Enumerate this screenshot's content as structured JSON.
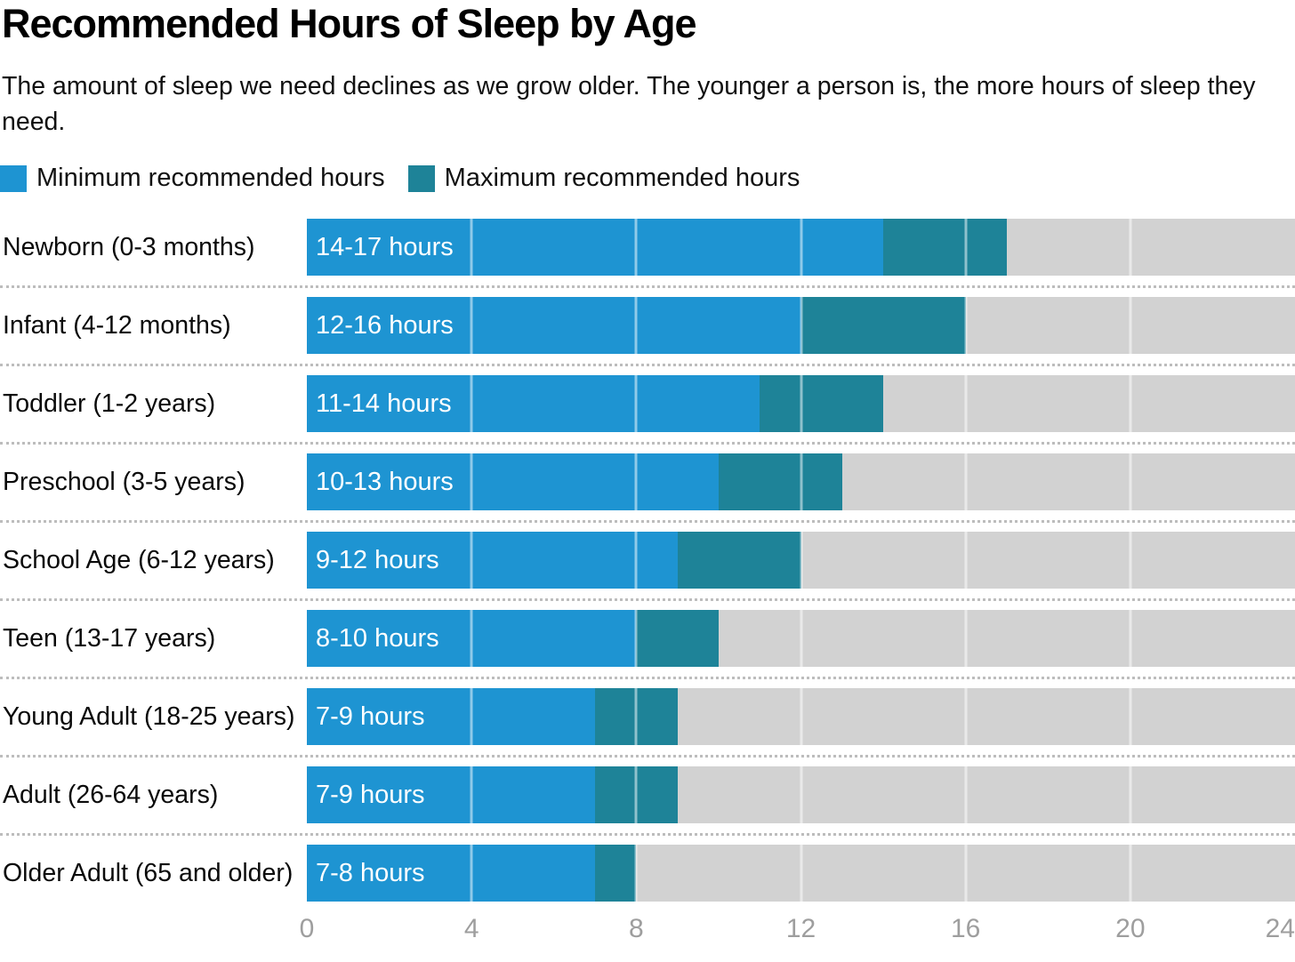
{
  "title": "Recommended Hours of Sleep by Age",
  "subtitle": "The amount of sleep we need declines as we grow older. The younger a person is, the more hours of sleep they need.",
  "legend": [
    {
      "label": "Minimum recommended hours",
      "color": "#1e94d2"
    },
    {
      "label": "Maximum recommended hours",
      "color": "#1e8398"
    }
  ],
  "colors": {
    "min_bar": "#1e94d2",
    "max_bar": "#1e8398",
    "track": "#d2d2d2",
    "gridline_overlay": "rgba(255,255,255,0.5)",
    "axis_label": "#9e9e9e",
    "separator": "#bdbdbd",
    "bar_label_text": "#ffffff"
  },
  "chart_data": {
    "type": "bar",
    "orientation": "horizontal",
    "title": "Recommended Hours of Sleep by Age",
    "categories": [
      "Newborn (0-3 months)",
      "Infant (4-12 months)",
      "Toddler (1-2 years)",
      "Preschool (3-5 years)",
      "School Age (6-12 years)",
      "Teen (13-17 years)",
      "Young Adult (18-25 years)",
      "Adult (26-64 years)",
      "Older Adult (65 and older)"
    ],
    "series": [
      {
        "name": "Minimum recommended hours",
        "values": [
          14,
          12,
          11,
          10,
          9,
          8,
          7,
          7,
          7
        ]
      },
      {
        "name": "Maximum recommended hours",
        "values": [
          17,
          16,
          14,
          13,
          12,
          10,
          9,
          9,
          8
        ]
      }
    ],
    "bar_labels": [
      "14-17 hours",
      "12-16 hours",
      "11-14 hours",
      "10-13 hours",
      "9-12 hours",
      "8-10 hours",
      "7-9 hours",
      "7-9 hours",
      "7-8 hours"
    ],
    "xlabel": "",
    "ylabel": "",
    "xlim": [
      0,
      24
    ],
    "x_ticks": [
      0,
      4,
      8,
      12,
      16,
      20,
      24
    ],
    "gridlines_at": [
      4,
      8,
      12,
      16,
      20
    ],
    "legend_position": "top",
    "grid": true
  }
}
